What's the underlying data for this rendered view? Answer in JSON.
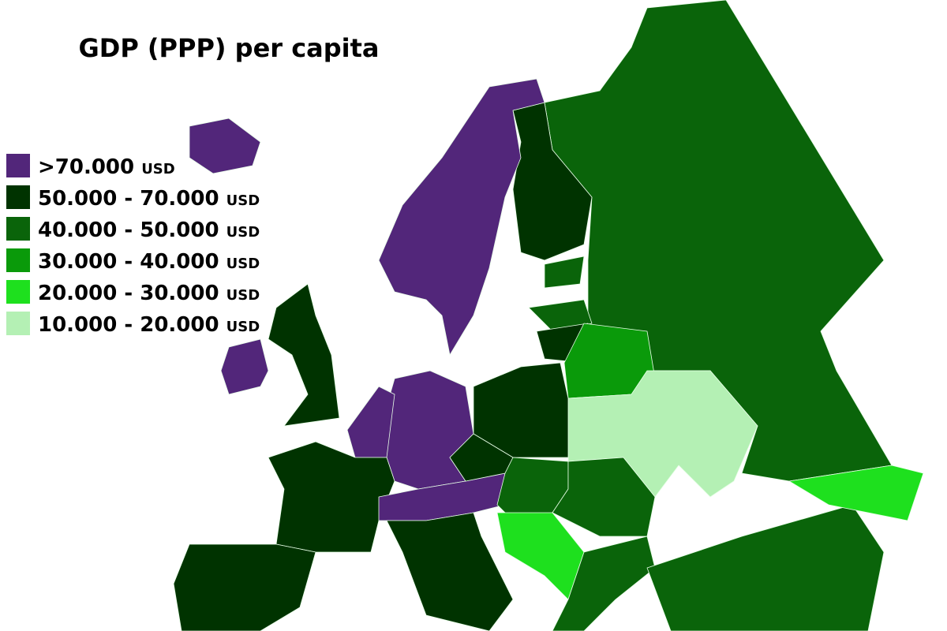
{
  "title": "GDP (PPP) per capita",
  "legend": [
    {
      "label": ">70.000",
      "unit": "USD",
      "color": "#52267a"
    },
    {
      "label": "50.000 - 70.000",
      "unit": "USD",
      "color": "#003300"
    },
    {
      "label": "40.000 - 50.000",
      "unit": "USD",
      "color": "#0a640a"
    },
    {
      "label": "30.000 - 40.000",
      "unit": "USD",
      "color": "#0a9a0a"
    },
    {
      "label": "20.000 - 30.000",
      "unit": "USD",
      "color": "#1ee01e"
    },
    {
      "label": "10.000 - 20.000",
      "unit": "USD",
      "color": "#b4f0b4"
    }
  ]
}
